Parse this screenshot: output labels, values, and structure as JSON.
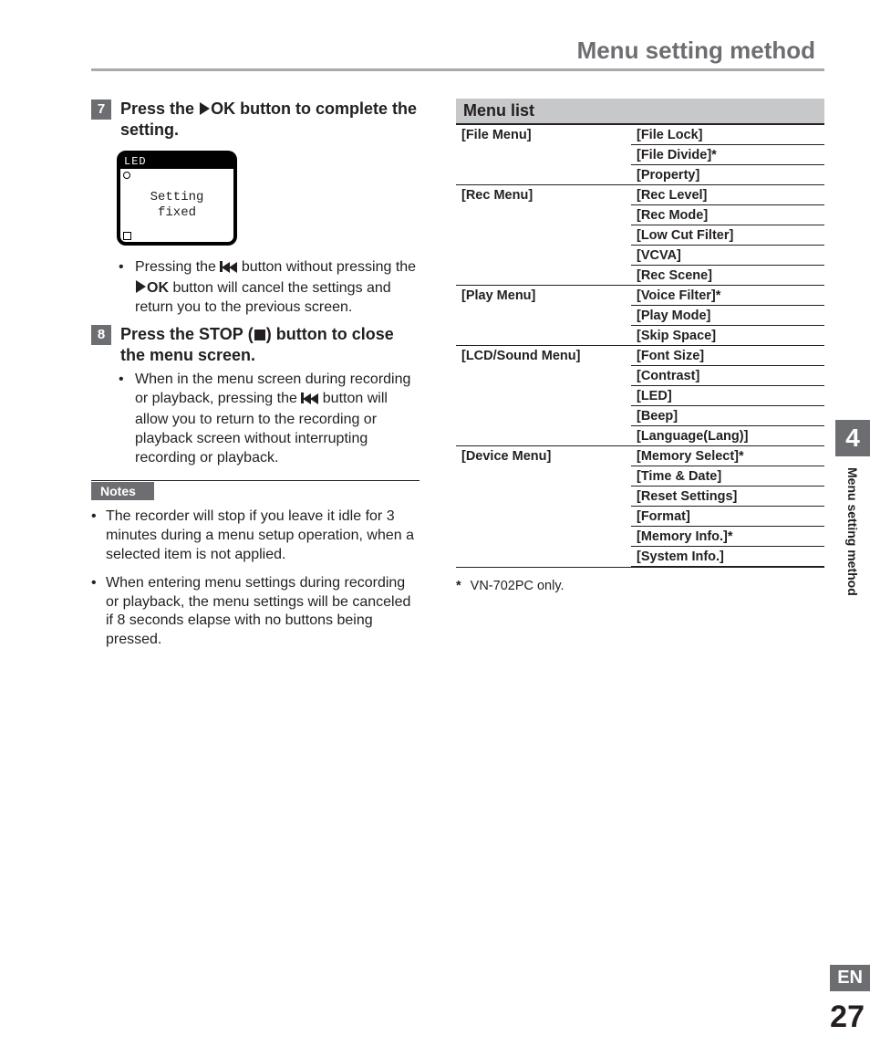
{
  "header": {
    "title": "Menu setting method"
  },
  "steps": {
    "s7": {
      "num": "7",
      "pre": "Press the",
      "ok": "OK",
      "post": "button to complete the setting."
    },
    "s8": {
      "num": "8",
      "pre": "Press the ",
      "stop": "STOP",
      "post": " button to close the menu screen."
    }
  },
  "lcd": {
    "title": "LED",
    "line1": "Setting",
    "line2": "fixed"
  },
  "bullets": {
    "b7a_pre": "Pressing the ",
    "b7a_mid": " button without pressing the",
    "b7a_ok": "OK",
    "b7a_post": " button will cancel the settings and return you to the previous screen.",
    "b8a_pre": "When in the menu screen during recording or playback, pressing the ",
    "b8a_post": " button will allow you to return to the recording or playback screen without interrupting recording or playback."
  },
  "notes": {
    "label": "Notes",
    "n1": "The recorder will stop if you leave it idle for 3 minutes during a menu setup operation, when a selected item is not applied.",
    "n2": "When entering menu settings during recording or playback, the menu settings will be canceled if 8 seconds elapse with no buttons being pressed."
  },
  "menuList": {
    "heading": "Menu list",
    "categories": [
      {
        "name": "[File Menu]",
        "items": [
          "[File Lock]",
          "[File Divide]*",
          "[Property]"
        ]
      },
      {
        "name": "[Rec Menu]",
        "items": [
          "[Rec Level]",
          "[Rec Mode]",
          "[Low Cut Filter]",
          "[VCVA]",
          "[Rec Scene]"
        ]
      },
      {
        "name": "[Play Menu]",
        "items": [
          "[Voice Filter]*",
          "[Play Mode]",
          "[Skip Space]"
        ]
      },
      {
        "name": "[LCD/Sound Menu]",
        "items": [
          "[Font Size]",
          "[Contrast]",
          "[LED]",
          "[Beep]",
          "[Language(Lang)]"
        ]
      },
      {
        "name": "[Device Menu]",
        "items": [
          "[Memory Select]*",
          "[Time & Date]",
          "[Reset Settings]",
          "[Format]",
          "[Memory Info.]*",
          "[System Info.]"
        ]
      }
    ],
    "footnote_mark": "*",
    "footnote_text": "VN-702PC only."
  },
  "sideTab": {
    "chapter": "4",
    "label": "Menu setting method"
  },
  "footer": {
    "lang": "EN",
    "page": "27"
  },
  "colors": {
    "gray_dark": "#6d6e71",
    "gray_light": "#c7c8ca",
    "rule": "#a7a9ac",
    "text": "#231f20"
  }
}
